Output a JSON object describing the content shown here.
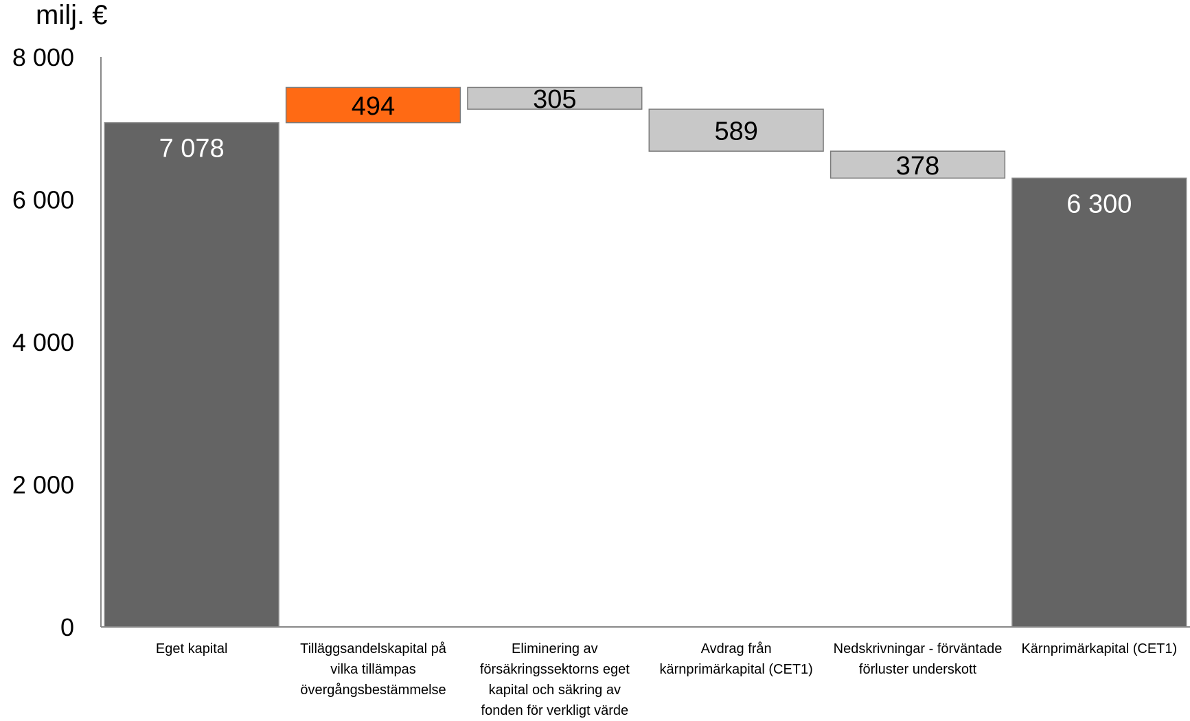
{
  "chart_data": {
    "type": "bar",
    "subtype": "waterfall",
    "ylabel": "milj. €",
    "ylim": [
      0,
      8000
    ],
    "yticks": [
      0,
      2000,
      4000,
      6000,
      8000
    ],
    "ytick_labels": [
      "0",
      "2 000",
      "4 000",
      "6 000",
      "8 000"
    ],
    "grid": false,
    "categories": [
      "Eget kapital",
      "Tilläggsandelskapital på vilka tillämpas övergångsbestämmelse",
      "Eliminering av försäkringssektorns eget kapital och säkring av fonden för verkligt värde",
      "Avdrag från kärnprimärkapital (CET1)",
      "Nedskrivningar - förväntade förluster underskott",
      "Kärnprimärkapital (CET1)"
    ],
    "bars": [
      {
        "kind": "total",
        "start": 0,
        "end": 7078,
        "value": 7078,
        "label": "7 078",
        "color": "#646464",
        "label_color": "#ffffff"
      },
      {
        "kind": "increase",
        "start": 7078,
        "end": 7572,
        "value": 494,
        "label": "494",
        "color": "#ff6a14",
        "label_color": "#000000"
      },
      {
        "kind": "decrease",
        "start": 7572,
        "end": 7267,
        "value": -305,
        "label": "305",
        "color": "#c8c8c8",
        "label_color": "#000000"
      },
      {
        "kind": "decrease",
        "start": 7267,
        "end": 6678,
        "value": -589,
        "label": "589",
        "color": "#c8c8c8",
        "label_color": "#000000"
      },
      {
        "kind": "decrease",
        "start": 6678,
        "end": 6300,
        "value": -378,
        "label": "378",
        "color": "#c8c8c8",
        "label_color": "#000000"
      },
      {
        "kind": "total",
        "start": 0,
        "end": 6300,
        "value": 6300,
        "label": "6 300",
        "color": "#646464",
        "label_color": "#ffffff"
      }
    ]
  }
}
